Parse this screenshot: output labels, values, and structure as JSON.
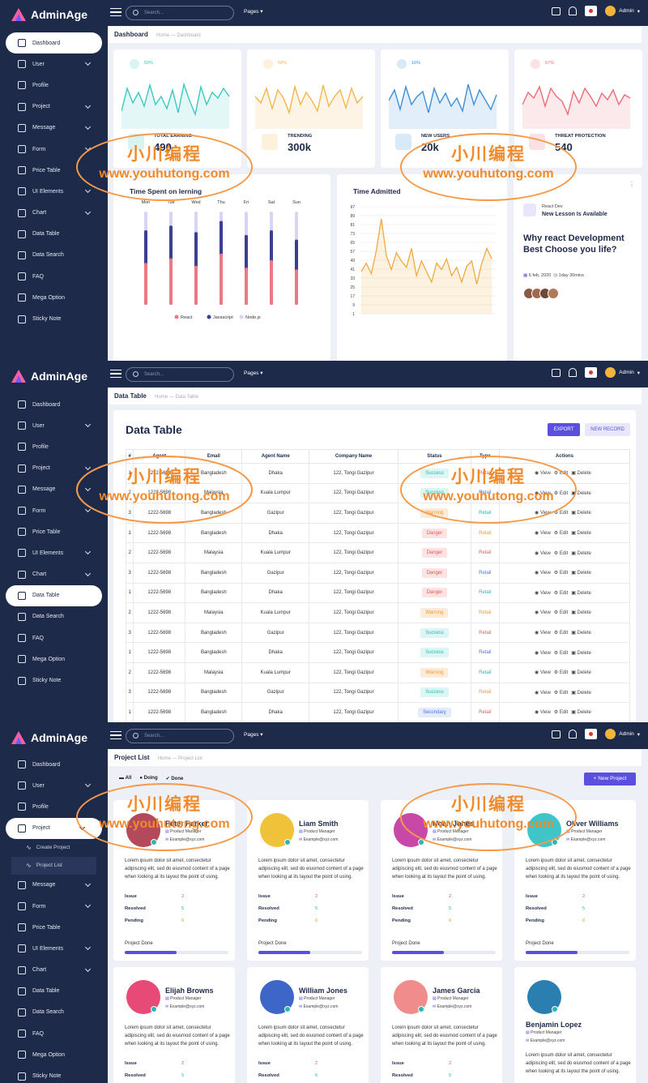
{
  "app": {
    "name": "AdminAge"
  },
  "topbar": {
    "search_placeholder": "Search...",
    "pages_label": "Pages",
    "admin_label": "Admin"
  },
  "watermark": {
    "line1": "小川编程",
    "line2": "www.youhutong.com"
  },
  "nav": {
    "items": [
      "Dashboard",
      "User",
      "Profile",
      "Project",
      "Message",
      "Form",
      "Price Table",
      "UI Elements",
      "Chart",
      "Data Table",
      "Data Search",
      "FAQ",
      "Mega Option",
      "Sticky Note"
    ],
    "project_sub": [
      "Create Project",
      "Project List"
    ]
  },
  "dashboard": {
    "crumb": {
      "title": "Dashboard",
      "home": "Home",
      "current": "Dashboard"
    },
    "stats": [
      {
        "pct": "50%",
        "label": "TOTAL EARNING",
        "value": "490",
        "color": "#3cc8c0"
      },
      {
        "pct": "50%",
        "label": "TRENDING",
        "value": "300k",
        "color": "#f3b54f"
      },
      {
        "pct": "16%",
        "label": "NEW USERS",
        "value": "20k",
        "color": "#3d8fd8"
      },
      {
        "pct": "67%",
        "label": "THREAT PROTECTION",
        "value": "540",
        "color": "#ee6b78"
      }
    ],
    "time_spent": {
      "title": "Time Spent on lerning",
      "days": [
        "Mon",
        "Tue",
        "Wed",
        "Thu",
        "Fri",
        "Sat",
        "Sun"
      ],
      "legend": [
        "React",
        "Javascript",
        "Node.js"
      ]
    },
    "time_admitted": {
      "title": "Time Admitted",
      "yticks": [
        "97",
        "89",
        "81",
        "73",
        "65",
        "57",
        "49",
        "41",
        "33",
        "25",
        "17",
        "9",
        "1"
      ]
    },
    "lesson": {
      "tag": "React Dev",
      "headline": "New Lesson Is Available",
      "question": "Why react Development Best Choose you life?",
      "date": "6 feb, 2020",
      "duration": "1day 30mins"
    }
  },
  "datatable": {
    "crumb": {
      "title": "Data Table",
      "home": "Home",
      "current": "Data Table"
    },
    "title": "Data Table",
    "export_label": "EXPORT",
    "new_record_label": "NEW RECORD",
    "headers": [
      "#",
      "Agent",
      "Email",
      "Agent Name",
      "Company Name",
      "Status",
      "Type",
      "Actions"
    ],
    "actions": [
      "View",
      "Edit",
      "Delete"
    ],
    "rows": [
      [
        "1",
        "1222-5698",
        "Bangladesh",
        "Dhaka",
        "122, Tongi Gazipur",
        "Success",
        "Retail"
      ],
      [
        "2",
        "1222-5698",
        "Malaysia",
        "Kuala Lumpur",
        "122, Tongi Gazipur",
        "Success",
        "Retail"
      ],
      [
        "3",
        "1222-5698",
        "Bangladesh",
        "Gazipur",
        "122, Tongi Gazipur",
        "Warning",
        "Retail"
      ],
      [
        "1",
        "1222-5698",
        "Bangladesh",
        "Dhaka",
        "122, Tongi Gazipur",
        "Danger",
        "Retail"
      ],
      [
        "2",
        "1222-5698",
        "Malaysia",
        "Kuala Lumpur",
        "122, Tongi Gazipur",
        "Danger",
        "Retail"
      ],
      [
        "3",
        "1222-5698",
        "Bangladesh",
        "Gazipur",
        "122, Tongi Gazipur",
        "Danger",
        "Retail"
      ],
      [
        "1",
        "1222-5698",
        "Bangladesh",
        "Dhaka",
        "122, Tongi Gazipur",
        "Danger",
        "Retail"
      ],
      [
        "2",
        "1222-5698",
        "Malaysia",
        "Kuala Lumpur",
        "122, Tongi Gazipur",
        "Warning",
        "Retail"
      ],
      [
        "3",
        "1222-5698",
        "Bangladesh",
        "Gazipur",
        "122, Tongi Gazipur",
        "Success",
        "Retail"
      ],
      [
        "1",
        "1222-5698",
        "Bangladesh",
        "Dhaka",
        "122, Tongi Gazipur",
        "Success",
        "Retail"
      ],
      [
        "2",
        "1222-5698",
        "Malaysia",
        "Kuala Lumpur",
        "122, Tongi Gazipur",
        "Warning",
        "Retail"
      ],
      [
        "3",
        "1222-5698",
        "Bangladesh",
        "Gazipur",
        "122, Tongi Gazipur",
        "Success",
        "Retail"
      ],
      [
        "1",
        "1222-5698",
        "Bangladesh",
        "Dhaka",
        "122, Tongi Gazipur",
        "Secondary",
        "Retail"
      ]
    ]
  },
  "projects": {
    "crumb": {
      "title": "Project List",
      "home": "Home",
      "current": "Project List"
    },
    "filters": [
      "All",
      "Doing",
      "Done"
    ],
    "new_project_label": "+ New Project",
    "desc": "Lorem ipsum dolor sit amet, consectetur adipiscing elit, sed do eiusmod content of a page when looking at its layout the point of using.",
    "stats_labels": [
      "Issue",
      "Resolved",
      "Pending"
    ],
    "stats_values": [
      "2",
      "5",
      "6"
    ],
    "done_label": "Project Done",
    "cards": [
      {
        "name": "Peter Parker",
        "role": "Product Manager",
        "email": "Example@xyz.com",
        "color": "#b24a5c"
      },
      {
        "name": "Liam Smith",
        "role": "Product Manager",
        "email": "Example@xyz.com",
        "color": "#f0c23a"
      },
      {
        "name": "Noah Jones",
        "role": "Product Manager",
        "email": "Example@xyz.com",
        "color": "#c848a8"
      },
      {
        "name": "Oliver Williams",
        "role": "Product Manager",
        "email": "Example@xyz.com",
        "color": "#3fc4c8"
      },
      {
        "name": "Elijah Browns",
        "role": "Product Manager",
        "email": "Example@xyz.com",
        "color": "#e84a78"
      },
      {
        "name": "William Jones",
        "role": "Product Manager",
        "email": "Example@xyz.com",
        "color": "#3e66c8"
      },
      {
        "name": "James Garcia",
        "role": "Product Manager",
        "email": "Example@xyz.com",
        "color": "#f08c8c"
      },
      {
        "name": "Benjamin Lopez",
        "role": "Product Manager",
        "email": "Example@xyz.com",
        "color": "#2a7fb0"
      }
    ]
  }
}
